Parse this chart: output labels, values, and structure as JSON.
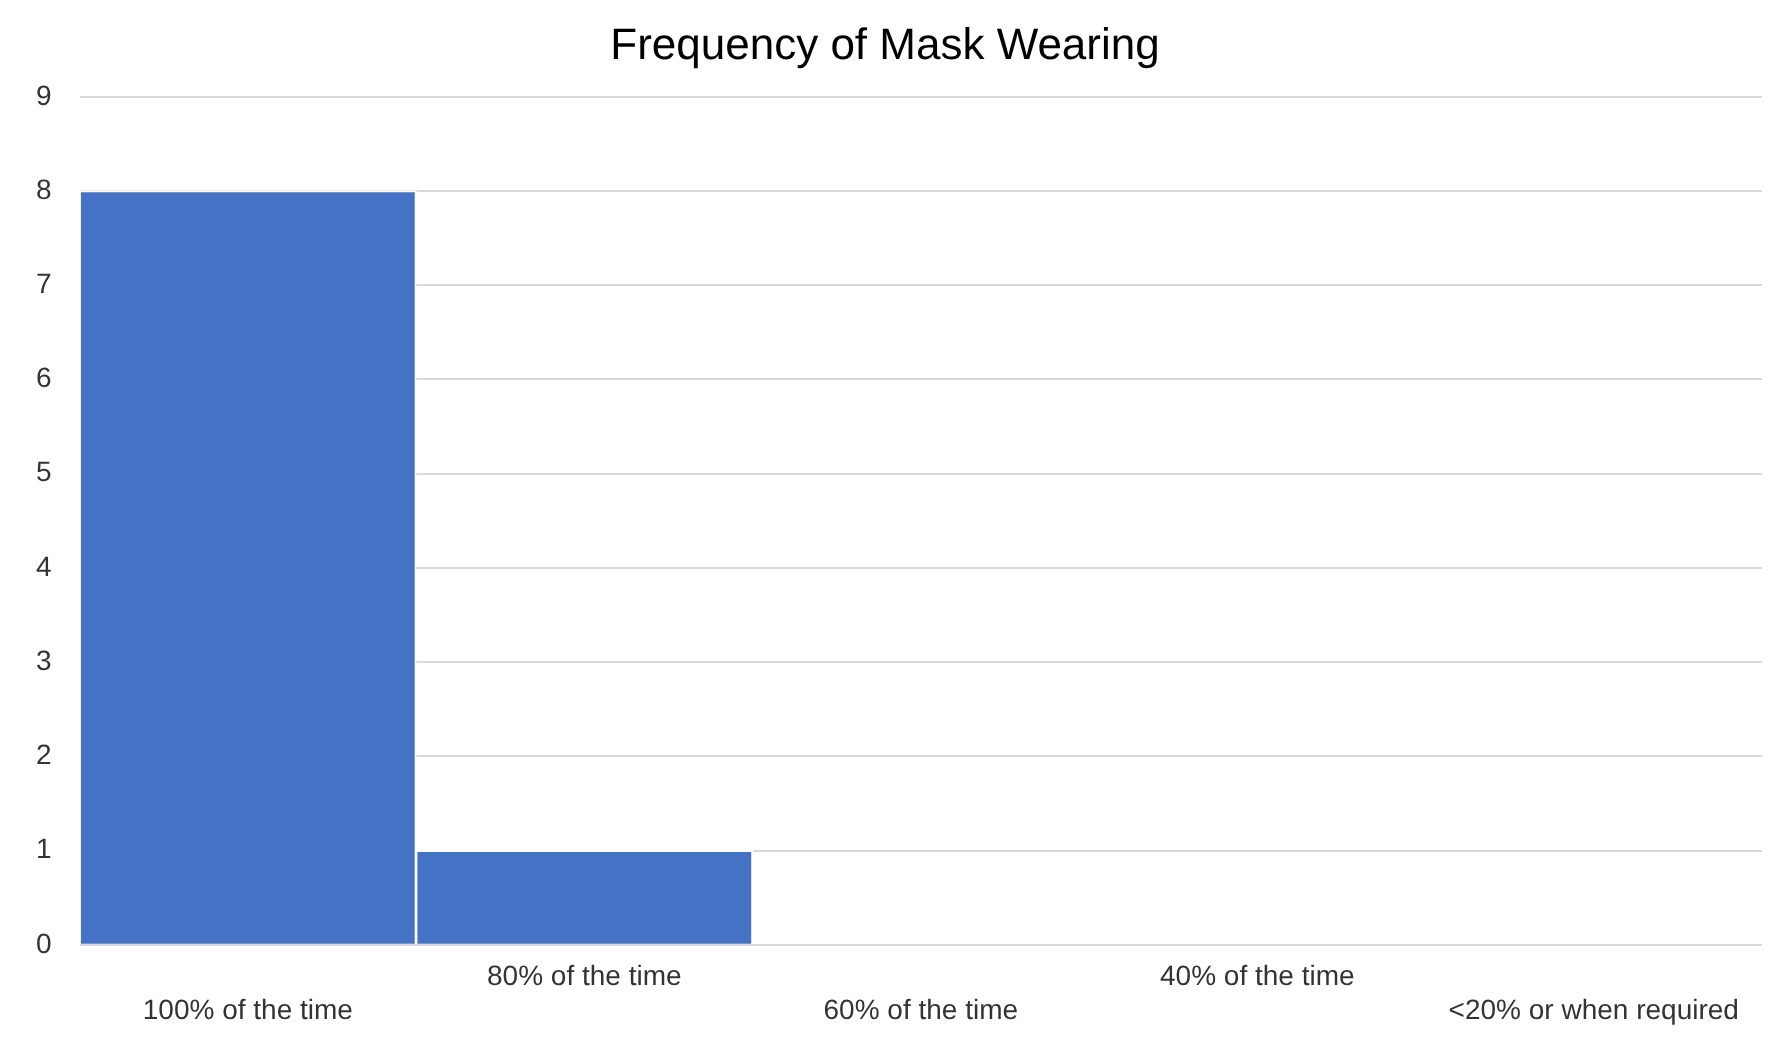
{
  "chart_data": {
    "type": "bar",
    "title": "Frequency of Mask Wearing",
    "categories": [
      "100% of the time",
      "80% of the time",
      "60% of the time",
      "40% of the time",
      "<20% or when required"
    ],
    "values": [
      8,
      1,
      0,
      0,
      0
    ],
    "color": "#4472c4",
    "ylim": [
      0,
      9
    ],
    "yticks": [
      0,
      1,
      2,
      3,
      4,
      5,
      6,
      7,
      8,
      9
    ],
    "grid": "y"
  }
}
